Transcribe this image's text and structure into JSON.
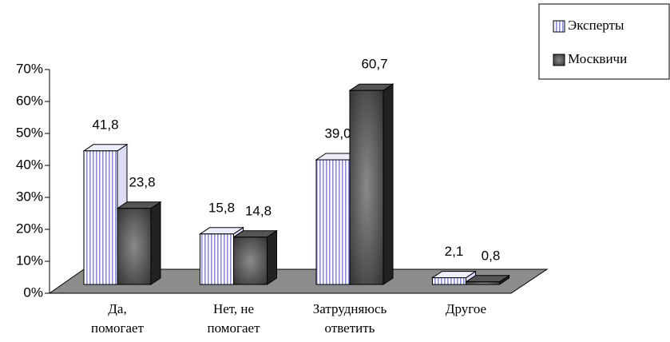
{
  "chart_data": {
    "type": "bar3d",
    "categories": [
      [
        "Да,",
        "помогает"
      ],
      [
        "Нет, не",
        "помогает"
      ],
      [
        "Затрудняюсь",
        "ответить"
      ],
      [
        "Другое"
      ]
    ],
    "series": [
      {
        "name": "Эксперты",
        "color": "#c8c8f0",
        "values": [
          41.8,
          15.8,
          39.0,
          2.1
        ],
        "value_labels": [
          "41,8",
          "15,8",
          "39,0",
          "2,1"
        ]
      },
      {
        "name": "Москвичи",
        "color": "#444444",
        "values": [
          23.8,
          14.8,
          60.7,
          0.8
        ],
        "value_labels": [
          "23,8",
          "14,8",
          "60,7",
          "0,8"
        ]
      }
    ],
    "ylim": [
      0,
      70
    ],
    "yticks": [
      {
        "value": 0,
        "label": "0%"
      },
      {
        "value": 10,
        "label": "10%"
      },
      {
        "value": 20,
        "label": "20%"
      },
      {
        "value": 30,
        "label": "30%"
      },
      {
        "value": 40,
        "label": "40%"
      },
      {
        "value": 50,
        "label": "50%"
      },
      {
        "value": 60,
        "label": "60%"
      },
      {
        "value": 70,
        "label": "70%"
      }
    ],
    "legend": "top-right"
  }
}
